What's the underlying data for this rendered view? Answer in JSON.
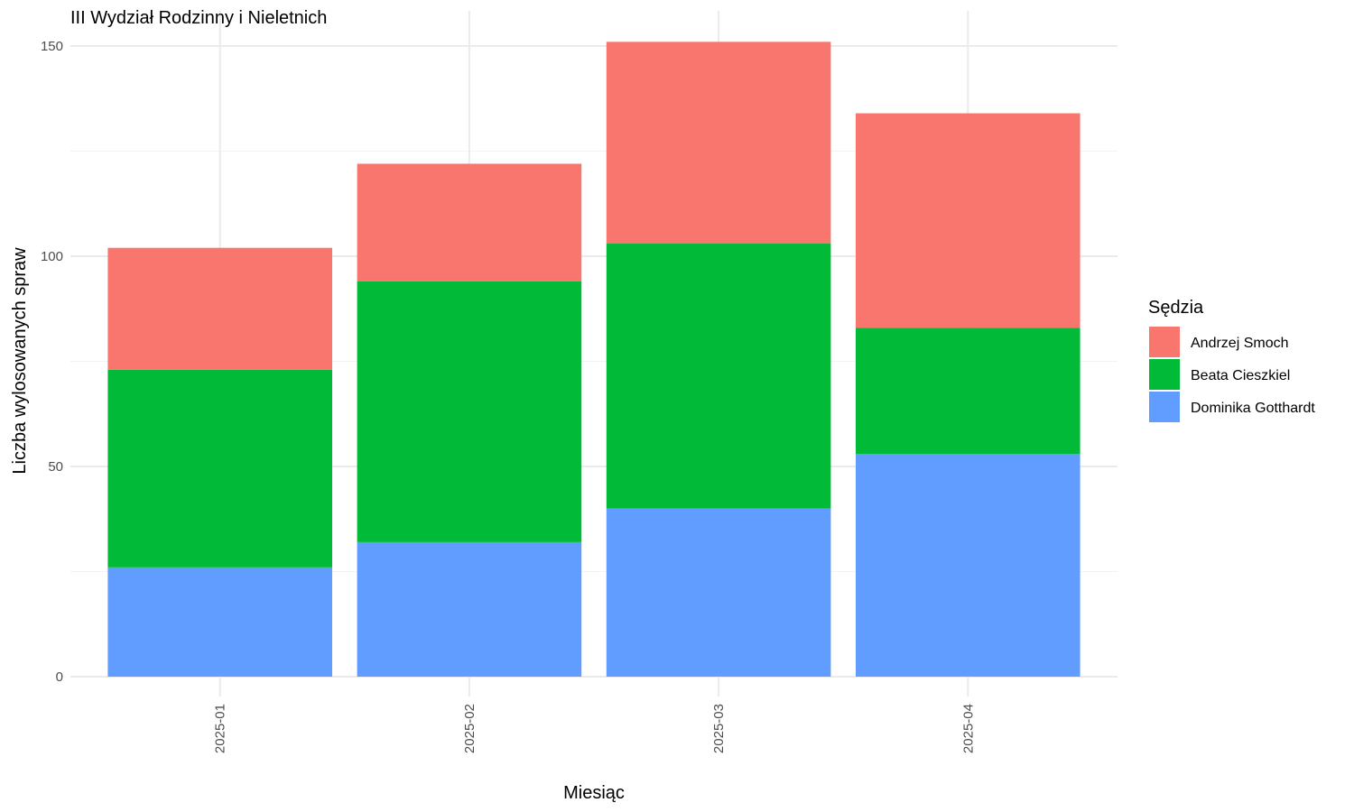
{
  "chart_data": {
    "type": "bar",
    "stacked": true,
    "title": "III Wydział Rodzinny i Nieletnich",
    "xlabel": "Miesiąc",
    "ylabel": "Liczba wylosowanych spraw",
    "categories": [
      "2025-01",
      "2025-02",
      "2025-03",
      "2025-04"
    ],
    "ylim": [
      0,
      158
    ],
    "yticks": [
      0,
      50,
      100,
      150
    ],
    "grid": true,
    "legend": {
      "title": "Sędzia",
      "position": "right"
    },
    "series": [
      {
        "name": "Dominika Gotthardt",
        "color": "#619CFF",
        "values": [
          26,
          32,
          40,
          53
        ]
      },
      {
        "name": "Beata Cieszkiel",
        "color": "#00BA38",
        "values": [
          47,
          62,
          63,
          30
        ]
      },
      {
        "name": "Andrzej Smoch",
        "color": "#F8766D",
        "values": [
          29,
          28,
          48,
          51
        ]
      }
    ],
    "legend_order": [
      "Andrzej Smoch",
      "Beata Cieszkiel",
      "Dominika Gotthardt"
    ]
  }
}
